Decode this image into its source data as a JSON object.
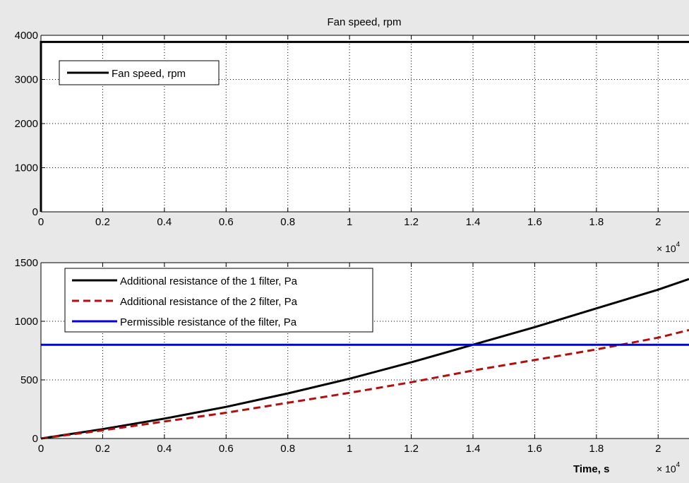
{
  "chart_data": [
    {
      "type": "line",
      "title": "Fan speed, rpm",
      "xlabel": "",
      "ylabel": "",
      "xlim": [
        0,
        21000
      ],
      "ylim": [
        0,
        4000
      ],
      "x_ticks": [
        0,
        2000,
        4000,
        6000,
        8000,
        10000,
        12000,
        14000,
        16000,
        18000,
        20000
      ],
      "x_tick_labels": [
        "0",
        "0.2",
        "0.4",
        "0.6",
        "0.8",
        "1",
        "1.2",
        "1.4",
        "1.6",
        "1.8",
        "2"
      ],
      "x_multiplier": "× 10",
      "x_multiplier_exp": "4",
      "y_ticks": [
        0,
        1000,
        2000,
        3000,
        4000
      ],
      "y_tick_labels": [
        "0",
        "1000",
        "2000",
        "3000",
        "4000"
      ],
      "grid": true,
      "legend_position": "top-left",
      "series": [
        {
          "name": "Fan speed, rpm",
          "color": "#000000",
          "dash": "solid",
          "x": [
            0,
            0,
            21000
          ],
          "y": [
            0,
            3850,
            3850
          ]
        }
      ]
    },
    {
      "type": "line",
      "title": "",
      "xlabel": "Time, s",
      "ylabel": "",
      "xlim": [
        0,
        21000
      ],
      "ylim": [
        0,
        1500
      ],
      "x_ticks": [
        0,
        2000,
        4000,
        6000,
        8000,
        10000,
        12000,
        14000,
        16000,
        18000,
        20000
      ],
      "x_tick_labels": [
        "0",
        "0.2",
        "0.4",
        "0.6",
        "0.8",
        "1",
        "1.2",
        "1.4",
        "1.6",
        "1.8",
        "2"
      ],
      "x_multiplier": "× 10",
      "x_multiplier_exp": "4",
      "y_ticks": [
        0,
        500,
        1000,
        1500
      ],
      "y_tick_labels": [
        "0",
        "500",
        "1000",
        "1500"
      ],
      "grid": true,
      "legend_position": "top-left",
      "series": [
        {
          "name": "Additional  resistance of the 1 filter, Pa",
          "color": "#000000",
          "dash": "solid",
          "x": [
            0,
            2000,
            4000,
            6000,
            8000,
            10000,
            12000,
            14000,
            16000,
            18000,
            20000,
            21000
          ],
          "y": [
            0,
            80,
            170,
            270,
            385,
            510,
            650,
            800,
            950,
            1110,
            1270,
            1360
          ]
        },
        {
          "name": "Additional  resistance of the 2 filter, Pa",
          "color": "#b01010",
          "dash": "dashed",
          "x": [
            0,
            2000,
            4000,
            6000,
            8000,
            10000,
            12000,
            14000,
            16000,
            18000,
            20000,
            21000
          ],
          "y": [
            0,
            70,
            145,
            220,
            305,
            390,
            480,
            580,
            670,
            760,
            860,
            925
          ]
        },
        {
          "name": "Permissible  resistance of the filter, Pa",
          "color": "#0000e0",
          "dash": "solid",
          "x": [
            0,
            21000
          ],
          "y": [
            800,
            800
          ]
        }
      ]
    }
  ]
}
